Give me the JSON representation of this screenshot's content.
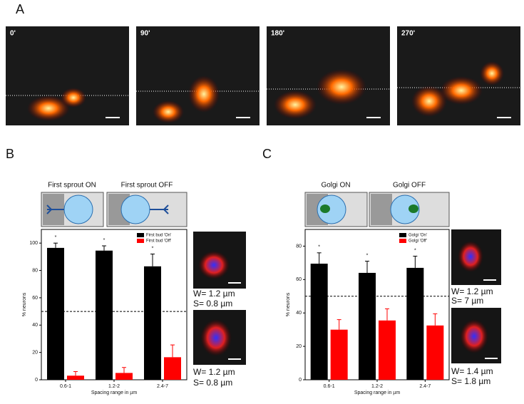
{
  "panel_labels": [
    "A",
    "B",
    "C"
  ],
  "time_labels": [
    "0'",
    "90'",
    "180'",
    "270'"
  ],
  "schematic_labels": [
    "First sprout ON",
    "First sprout OFF",
    "Golgi ON",
    "Golgi OFF"
  ],
  "captions": [
    [
      "W= 1.2 µm",
      "S= 0.8 µm"
    ],
    [
      "W= 1.2 µm",
      "S= 0.8 µm"
    ],
    [
      "W= 1.2 µm",
      "S= 7 µm"
    ],
    [
      "W= 1.4 µm",
      "S= 1.8 µm"
    ]
  ],
  "chart_data": [
    {
      "type": "bar",
      "x_label": "Spacing range in µm",
      "y_label": "% neurons",
      "categories": [
        "0.6-1",
        "1.2-2",
        "2.4-7"
      ],
      "series": [
        {
          "name": "First bud 'On'",
          "color": "#000000",
          "values": [
            96.5,
            94.5,
            83
          ],
          "errors": [
            3.5,
            3.5,
            9
          ]
        },
        {
          "name": "First bud 'Off'",
          "color": "#ff0000",
          "values": [
            3,
            5,
            16.5
          ],
          "errors": [
            3,
            4,
            9
          ]
        }
      ],
      "annotations": [
        "*",
        "*",
        "*"
      ],
      "hline": 50,
      "ylim": [
        0,
        110
      ],
      "yticks": [
        0,
        20,
        40,
        60,
        80,
        100
      ],
      "legend": "upper right"
    },
    {
      "type": "bar",
      "x_label": "Spacing range in µm",
      "y_label": "% neurons",
      "categories": [
        "0.6-1",
        "1.2-2",
        "2.4-7"
      ],
      "series": [
        {
          "name": "Golgi 'On'",
          "color": "#000000",
          "values": [
            69.5,
            64,
            67
          ],
          "errors": [
            6.5,
            7,
            7
          ]
        },
        {
          "name": "Golgi 'Off'",
          "color": "#ff0000",
          "values": [
            30,
            35.5,
            32.5
          ],
          "errors": [
            6,
            7,
            7
          ]
        }
      ],
      "annotations": [
        "*",
        "*",
        "*"
      ],
      "hline": 50,
      "ylim": [
        0,
        90
      ],
      "yticks": [
        0,
        20,
        40,
        60,
        80
      ],
      "legend": "upper right"
    }
  ]
}
